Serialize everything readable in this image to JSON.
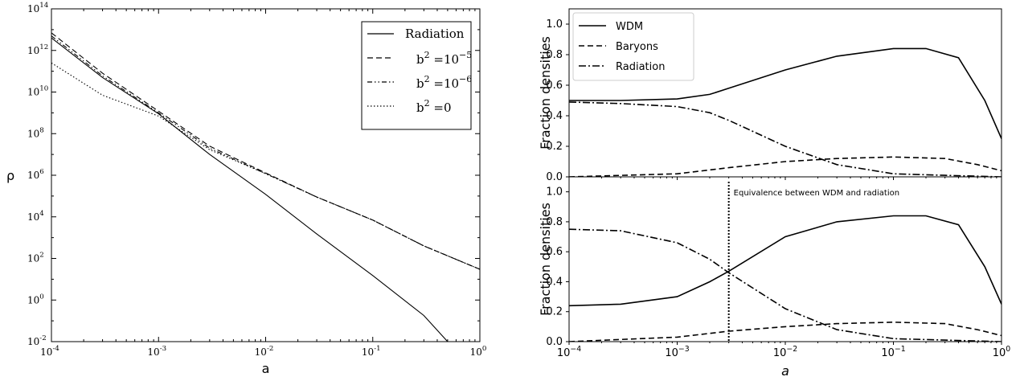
{
  "chart_data": [
    {
      "type": "line",
      "xscale": "log",
      "yscale": "log",
      "xlim": [
        0.0001,
        1
      ],
      "ylim": [
        0.01,
        100000000000000
      ],
      "xlabel": "a",
      "ylabel": "ρ",
      "x_ticks": [
        {
          "value": 0.0001,
          "base": "10",
          "exp": "-4"
        },
        {
          "value": 0.001,
          "base": "10",
          "exp": "-3"
        },
        {
          "value": 0.01,
          "base": "10",
          "exp": "-2"
        },
        {
          "value": 0.1,
          "base": "10",
          "exp": "-1"
        },
        {
          "value": 1,
          "base": "10",
          "exp": "0"
        }
      ],
      "y_ticks": [
        {
          "value": 0.01,
          "base": "10",
          "exp": "-2"
        },
        {
          "value": 1,
          "base": "10",
          "exp": "0"
        },
        {
          "value": 100,
          "base": "10",
          "exp": "2"
        },
        {
          "value": 10000,
          "base": "10",
          "exp": "4"
        },
        {
          "value": 1000000,
          "base": "10",
          "exp": "6"
        },
        {
          "value": 100000000,
          "base": "10",
          "exp": "8"
        },
        {
          "value": 10000000000,
          "base": "10",
          "exp": "10"
        },
        {
          "value": 1000000000000,
          "base": "10",
          "exp": "12"
        },
        {
          "value": 100000000000000,
          "base": "10",
          "exp": "14"
        }
      ],
      "legend_position": "top-right",
      "series": [
        {
          "name": "Radiation",
          "dash": "solid",
          "x": [
            0.0001,
            0.0003,
            0.001,
            0.003,
            0.01,
            0.03,
            0.1,
            0.3,
            0.5
          ],
          "y": [
            4000000000000,
            50000000000,
            900000000,
            10000000,
            120000,
            1500,
            15,
            0.18,
            0.01
          ]
        },
        {
          "name": "b² =10⁻⁵",
          "dash": "dashed",
          "x": [
            0.0001,
            0.0003,
            0.001,
            0.003,
            0.01,
            0.03,
            0.1,
            0.3,
            1
          ],
          "y": [
            7000000000000,
            80000000000,
            1200000000,
            25000000,
            1300000,
            90000,
            7000,
            400,
            30
          ]
        },
        {
          "name": "b² =10⁻⁶",
          "dash": "dashdotdot",
          "x": [
            0.0001,
            0.0003,
            0.001,
            0.003,
            0.01,
            0.03,
            0.1,
            0.3,
            1
          ],
          "y": [
            5000000000000,
            60000000000,
            1000000000,
            20000000,
            1200000,
            90000,
            7000,
            400,
            30
          ]
        },
        {
          "name": "b² =0",
          "dash": "dotted",
          "x": [
            0.0001,
            0.0003,
            0.001,
            0.003,
            0.01,
            0.03,
            0.1,
            0.3,
            1
          ],
          "y": [
            250000000000,
            7000000000,
            700000000,
            17000000,
            1200000,
            90000,
            7000,
            400,
            30
          ]
        }
      ],
      "legend": [
        {
          "label": "Radiation"
        },
        {
          "b": "b",
          "sup": "2",
          "mid": " =10",
          "exp": "−5"
        },
        {
          "b": "b",
          "sup": "2",
          "mid": " =10",
          "exp": "−6"
        },
        {
          "b": "b",
          "sup": "2",
          "mid": " =0",
          "exp": ""
        }
      ]
    },
    {
      "type": "line",
      "xscale": "log",
      "xlim": [
        0.0001,
        1
      ],
      "ylim": [
        0,
        1.1
      ],
      "ylabel": "Fraction densities",
      "y_ticks": [
        "0.0",
        "0.2",
        "0.4",
        "0.6",
        "0.8",
        "1.0"
      ],
      "legend_position": "top-left",
      "series": [
        {
          "name": "WDM",
          "dash": "solid",
          "x": [
            0.0001,
            0.0003,
            0.001,
            0.002,
            0.003,
            0.01,
            0.03,
            0.1,
            0.2,
            0.4,
            0.7,
            1
          ],
          "y": [
            0.5,
            0.5,
            0.51,
            0.54,
            0.58,
            0.7,
            0.79,
            0.84,
            0.84,
            0.78,
            0.5,
            0.25
          ]
        },
        {
          "name": "Baryons",
          "dash": "dashed",
          "x": [
            0.0001,
            0.001,
            0.003,
            0.01,
            0.03,
            0.1,
            0.3,
            0.6,
            1
          ],
          "y": [
            0.0,
            0.02,
            0.06,
            0.1,
            0.12,
            0.13,
            0.12,
            0.08,
            0.04
          ]
        },
        {
          "name": "Radiation",
          "dash": "dashdot",
          "x": [
            0.0001,
            0.0003,
            0.001,
            0.002,
            0.003,
            0.01,
            0.03,
            0.1,
            0.3,
            1
          ],
          "y": [
            0.49,
            0.48,
            0.46,
            0.42,
            0.37,
            0.2,
            0.08,
            0.02,
            0.01,
            0.0
          ]
        }
      ]
    },
    {
      "type": "line",
      "xscale": "log",
      "xlim": [
        0.0001,
        1
      ],
      "ylim": [
        0,
        1.1
      ],
      "xlabel": "a",
      "ylabel": "Fraction densities",
      "x_ticks": [
        {
          "value": 0.0001,
          "base": "10",
          "exp": "−4"
        },
        {
          "value": 0.001,
          "base": "10",
          "exp": "−3"
        },
        {
          "value": 0.01,
          "base": "10",
          "exp": "−2"
        },
        {
          "value": 0.1,
          "base": "10",
          "exp": "−1"
        },
        {
          "value": 1,
          "base": "10",
          "exp": "0"
        }
      ],
      "y_ticks": [
        "0.0",
        "0.2",
        "0.4",
        "0.6",
        "0.8",
        "1.0"
      ],
      "annotation": {
        "text": "Equivalence between WDM and radiation",
        "x": 0.003
      },
      "series": [
        {
          "name": "WDM",
          "dash": "solid",
          "x": [
            0.0001,
            0.0003,
            0.001,
            0.002,
            0.003,
            0.01,
            0.03,
            0.1,
            0.2,
            0.4,
            0.7,
            1
          ],
          "y": [
            0.24,
            0.25,
            0.3,
            0.4,
            0.47,
            0.7,
            0.8,
            0.84,
            0.84,
            0.78,
            0.5,
            0.25
          ]
        },
        {
          "name": "Baryons",
          "dash": "dashed",
          "x": [
            0.0001,
            0.001,
            0.003,
            0.01,
            0.03,
            0.1,
            0.3,
            0.6,
            1
          ],
          "y": [
            0.0,
            0.03,
            0.07,
            0.1,
            0.12,
            0.13,
            0.12,
            0.08,
            0.04
          ]
        },
        {
          "name": "Radiation",
          "dash": "dashdot",
          "x": [
            0.0001,
            0.0003,
            0.001,
            0.002,
            0.003,
            0.01,
            0.03,
            0.1,
            0.3,
            1
          ],
          "y": [
            0.75,
            0.74,
            0.66,
            0.55,
            0.46,
            0.22,
            0.08,
            0.02,
            0.01,
            0.0
          ]
        }
      ]
    }
  ]
}
